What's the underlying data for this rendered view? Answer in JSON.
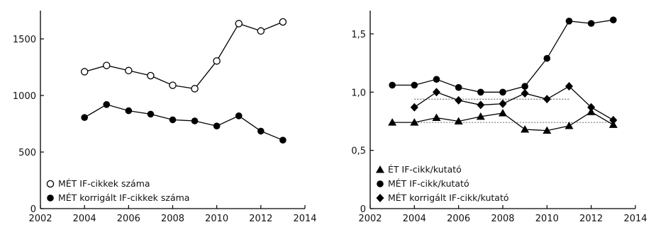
{
  "chart_data": [
    {
      "type": "line",
      "title": "",
      "xlabel": "",
      "ylabel": "",
      "xlim": [
        2002,
        2014
      ],
      "ylim": [
        0,
        1750
      ],
      "xticks": [
        2002,
        2004,
        2006,
        2008,
        2010,
        2012,
        2014
      ],
      "xtick_labels": [
        "2002",
        "2004",
        "2006",
        "2008",
        "2010",
        "2012",
        "2014"
      ],
      "yticks": [
        0,
        500,
        1000,
        1500
      ],
      "ytick_labels": [
        "0",
        "500",
        "1000",
        "1500"
      ],
      "legend_position": "bottom-left",
      "x": [
        2004,
        2005,
        2006,
        2007,
        2008,
        2009,
        2010,
        2011,
        2012,
        2013
      ],
      "series": [
        {
          "name": "MÉT IF-cikkek száma",
          "marker": "circle-open",
          "values": [
            1210,
            1265,
            1220,
            1175,
            1090,
            1060,
            1305,
            1635,
            1570,
            1650
          ]
        },
        {
          "name": "MÉT korrigált IF-cikkek száma",
          "marker": "circle-filled",
          "values": [
            805,
            920,
            865,
            835,
            785,
            775,
            730,
            820,
            685,
            605
          ]
        }
      ]
    },
    {
      "type": "line",
      "title": "",
      "xlabel": "",
      "ylabel": "",
      "xlim": [
        2002,
        2014
      ],
      "ylim": [
        0,
        1.7
      ],
      "xticks": [
        2002,
        2004,
        2006,
        2008,
        2010,
        2012,
        2014
      ],
      "xtick_labels": [
        "2002",
        "2004",
        "2006",
        "2008",
        "2010",
        "2012",
        "2014"
      ],
      "yticks": [
        0,
        0.5,
        1.0,
        1.5
      ],
      "ytick_labels": [
        "0",
        "0,5",
        "1,0",
        "1,5"
      ],
      "legend_position": "bottom-left",
      "series": [
        {
          "name": "ÉT IF-cikk/kutató",
          "marker": "triangle-filled",
          "x": [
            2003,
            2004,
            2005,
            2006,
            2007,
            2008,
            2009,
            2010,
            2011,
            2012,
            2013
          ],
          "values": [
            0.74,
            0.74,
            0.78,
            0.75,
            0.79,
            0.82,
            0.68,
            0.67,
            0.71,
            0.83,
            0.72
          ]
        },
        {
          "name": "MÉT IF-cikk/kutató",
          "marker": "circle-filled",
          "x": [
            2003,
            2004,
            2005,
            2006,
            2007,
            2008,
            2009,
            2010,
            2011,
            2012,
            2013
          ],
          "values": [
            1.06,
            1.06,
            1.11,
            1.04,
            1.0,
            1.0,
            1.05,
            1.29,
            1.61,
            1.59,
            1.62
          ]
        },
        {
          "name": "MÉT korrigált IF-cikk/kutató",
          "marker": "diamond-filled",
          "x": [
            2004,
            2005,
            2006,
            2007,
            2008,
            2009,
            2010,
            2011,
            2012,
            2013
          ],
          "values": [
            0.87,
            1.0,
            0.93,
            0.89,
            0.9,
            0.99,
            0.94,
            1.05,
            0.87,
            0.76
          ]
        }
      ],
      "reference_lines": [
        {
          "style": "dotted",
          "y": 0.94,
          "x_range": [
            2004,
            2011
          ]
        },
        {
          "style": "dotted",
          "y": 0.74,
          "x_range": [
            2003,
            2013
          ]
        }
      ]
    }
  ]
}
